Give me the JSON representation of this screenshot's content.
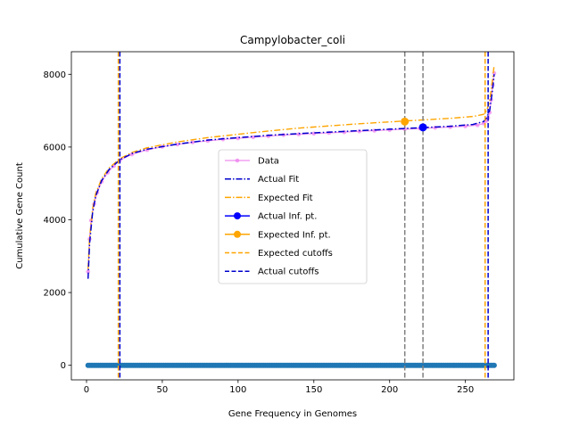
{
  "chart_data": {
    "type": "line",
    "title": "Campylobacter_coli",
    "xlabel": "Gene Frequency in Genomes",
    "ylabel": "Cumulative Gene Count",
    "xlim": [
      -10,
      282
    ],
    "ylim": [
      -400,
      8620
    ],
    "xticks": [
      0,
      50,
      100,
      150,
      200,
      250
    ],
    "yticks": [
      0,
      2000,
      4000,
      6000,
      8000
    ],
    "grid": false,
    "legend_position": "center",
    "colors": {
      "data": "#ee82ee",
      "actual_fit": "#0000cd",
      "expected_fit": "#ffa500",
      "actual_inf": "#0000ff",
      "expected_inf": "#ffa500",
      "gray_line": "#808080",
      "scatter": "#1f77b4"
    },
    "legend": [
      "Data",
      "Actual Fit",
      "Expected Fit",
      "Actual Inf. pt.",
      "Expected Inf. pt.",
      "Expected cutoffs",
      "Actual cutoffs"
    ],
    "series": [
      {
        "name": "Data",
        "x": [
          1,
          2,
          3,
          5,
          7,
          10,
          14,
          18,
          22,
          30,
          40,
          50,
          60,
          70,
          80,
          90,
          100,
          110,
          120,
          130,
          140,
          150,
          160,
          170,
          180,
          190,
          200,
          210,
          220,
          230,
          240,
          250,
          258,
          262,
          264,
          265,
          266,
          267,
          268,
          269
        ],
        "y": [
          2570,
          3470,
          3980,
          4430,
          4750,
          5050,
          5300,
          5480,
          5640,
          5800,
          5920,
          6010,
          6070,
          6130,
          6170,
          6210,
          6240,
          6270,
          6300,
          6330,
          6350,
          6370,
          6390,
          6410,
          6430,
          6450,
          6470,
          6490,
          6510,
          6530,
          6550,
          6570,
          6600,
          6650,
          6720,
          6800,
          6950,
          7300,
          7700,
          8030
        ]
      },
      {
        "name": "Actual Fit",
        "x": [
          1,
          2,
          4,
          6,
          10,
          15,
          22,
          30,
          40,
          60,
          80,
          100,
          120,
          140,
          160,
          180,
          200,
          220,
          240,
          255,
          262,
          264,
          266,
          268,
          269
        ],
        "y": [
          2380,
          3350,
          4200,
          4650,
          5080,
          5390,
          5650,
          5820,
          5940,
          6080,
          6190,
          6260,
          6320,
          6370,
          6410,
          6450,
          6490,
          6530,
          6570,
          6620,
          6700,
          6800,
          7000,
          7600,
          8000
        ]
      },
      {
        "name": "Expected Fit",
        "x": [
          1,
          2,
          4,
          6,
          10,
          15,
          22,
          30,
          40,
          60,
          80,
          100,
          120,
          140,
          160,
          180,
          200,
          220,
          240,
          255,
          262,
          264,
          266,
          268,
          269
        ],
        "y": [
          2650,
          3500,
          4300,
          4720,
          5130,
          5430,
          5680,
          5850,
          5980,
          6140,
          6260,
          6350,
          6440,
          6520,
          6580,
          6640,
          6690,
          6740,
          6790,
          6840,
          6900,
          7000,
          7250,
          7900,
          8250
        ]
      },
      {
        "name": "Actual Inf. pt.",
        "x": [
          222
        ],
        "y": [
          6540
        ]
      },
      {
        "name": "Expected Inf. pt.",
        "x": [
          210
        ],
        "y": [
          6700
        ]
      },
      {
        "name": "Expected cutoffs",
        "x": [
          21,
          263
        ]
      },
      {
        "name": "Actual cutoffs",
        "x": [
          22,
          265
        ]
      },
      {
        "name": "Inflection markers",
        "x": [
          210,
          222
        ]
      },
      {
        "name": "Baseline points",
        "x_start": 1,
        "x_end": 269,
        "y": 0
      }
    ]
  }
}
